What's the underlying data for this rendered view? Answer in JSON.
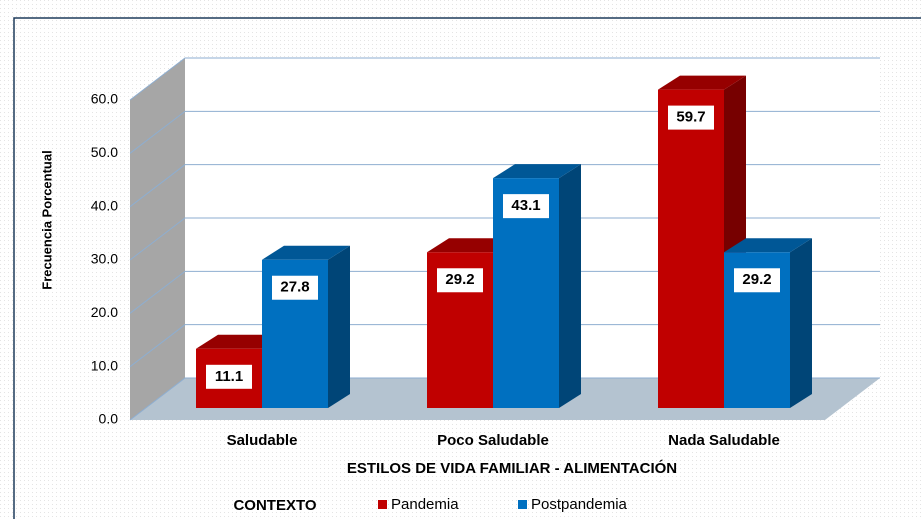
{
  "chart_data": {
    "type": "bar3d",
    "categories": [
      "Saludable",
      "Poco Saludable",
      "Nada Saludable"
    ],
    "series": [
      {
        "name": "Pandemia",
        "color": "#c00000",
        "values": [
          11.1,
          29.2,
          59.7
        ]
      },
      {
        "name": "Postpandemia",
        "color": "#0070c0",
        "values": [
          27.8,
          43.1,
          29.2
        ]
      }
    ],
    "ylim": [
      0,
      60
    ],
    "yticks": [
      {
        "value": 0,
        "label": "0.0"
      },
      {
        "value": 10,
        "label": "10.0"
      },
      {
        "value": 20,
        "label": "20.0"
      },
      {
        "value": 30,
        "label": "30.0"
      },
      {
        "value": 40,
        "label": "40.0"
      },
      {
        "value": 50,
        "label": "50.0"
      },
      {
        "value": 60,
        "label": "60.0"
      }
    ],
    "y_label": "Frecuencia Porcentual",
    "x_label": "ESTILOS DE VIDA FAMILIAR - ALIMENTACIÓN",
    "legend_title": "CONTEXTO",
    "legend": "bottom",
    "grid": true
  }
}
